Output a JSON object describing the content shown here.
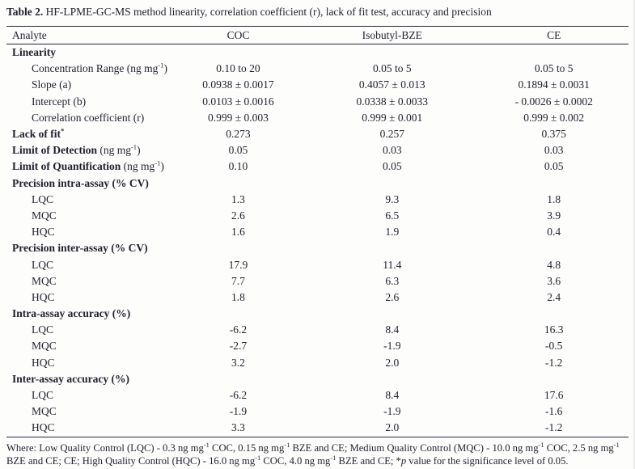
{
  "title": {
    "label": "Table 2.",
    "text": " HF-LPME-GC-MS method linearity, correlation coefficient (r), lack of fit test, accuracy and precision"
  },
  "table": {
    "columns": [
      "Analyte",
      "COC",
      "Isobutyl-BZE",
      "CE"
    ],
    "rows": [
      {
        "name": "linearity-section",
        "label": [
          {
            "text": "Linearity",
            "bold": true
          }
        ],
        "cells": [
          "",
          "",
          ""
        ]
      },
      {
        "name": "concentration-range",
        "indent": true,
        "label": [
          {
            "text": "Concentration Range (ng mg"
          },
          {
            "sup": "-1"
          },
          {
            "text": ")"
          }
        ],
        "cells": [
          "0.10 to 20",
          "0.05 to 5",
          "0.05 to 5"
        ]
      },
      {
        "name": "slope",
        "indent": true,
        "label": [
          {
            "text": "Slope (a)"
          }
        ],
        "cells": [
          "0.0938 ± 0.0017",
          "0.4057 ± 0.013",
          "0.1894 ± 0.0031"
        ]
      },
      {
        "name": "intercept",
        "indent": true,
        "label": [
          {
            "text": "Intercept (b)"
          }
        ],
        "cells": [
          "0.0103 ± 0.0016",
          "0.0338 ± 0.0033",
          "- 0.0026 ± 0.0002"
        ]
      },
      {
        "name": "correlation-coefficient",
        "indent": true,
        "label": [
          {
            "text": "Correlation coefficient (r)"
          }
        ],
        "cells": [
          "0.999 ± 0.003",
          "0.999 ± 0.001",
          "0.999 ± 0.002"
        ]
      },
      {
        "name": "lack-of-fit",
        "label": [
          {
            "text": "Lack of fit",
            "bold": true
          },
          {
            "sup": "*",
            "bold": true
          }
        ],
        "cells": [
          "0.273",
          "0.257",
          "0.375"
        ]
      },
      {
        "name": "limit-of-detection",
        "label": [
          {
            "text": "Limit of Detection",
            "bold": true
          },
          {
            "text": " (ng mg"
          },
          {
            "sup": "-1"
          },
          {
            "text": ")"
          }
        ],
        "cells": [
          "0.05",
          "0.03",
          "0.03"
        ]
      },
      {
        "name": "limit-of-quantification",
        "label": [
          {
            "text": "Limit of Quantification",
            "bold": true
          },
          {
            "text": " (ng mg"
          },
          {
            "sup": "-1"
          },
          {
            "text": ")"
          }
        ],
        "cells": [
          "0.10",
          "0.05",
          "0.05"
        ]
      },
      {
        "name": "precision-intra-assay-section",
        "label": [
          {
            "text": "Precision intra-assay (% CV)",
            "bold": true
          }
        ],
        "cells": [
          "",
          "",
          ""
        ]
      },
      {
        "name": "precision-intra-lqc",
        "indent": true,
        "label": [
          {
            "text": "LQC"
          }
        ],
        "cells": [
          "1.3",
          "9.3",
          "1.8"
        ]
      },
      {
        "name": "precision-intra-mqc",
        "indent": true,
        "label": [
          {
            "text": "MQC"
          }
        ],
        "cells": [
          "2.6",
          "6.5",
          "3.9"
        ]
      },
      {
        "name": "precision-intra-hqc",
        "indent": true,
        "label": [
          {
            "text": "HQC"
          }
        ],
        "cells": [
          "1.6",
          "1.9",
          "0.4"
        ]
      },
      {
        "name": "precision-inter-assay-section",
        "label": [
          {
            "text": "Precision inter-assay (% CV)",
            "bold": true
          }
        ],
        "cells": [
          "",
          "",
          ""
        ]
      },
      {
        "name": "precision-inter-lqc",
        "indent": true,
        "label": [
          {
            "text": "LQC"
          }
        ],
        "cells": [
          "17.9",
          "11.4",
          "4.8"
        ]
      },
      {
        "name": "precision-inter-mqc",
        "indent": true,
        "label": [
          {
            "text": "MQC"
          }
        ],
        "cells": [
          "7.7",
          "6.3",
          "3.6"
        ]
      },
      {
        "name": "precision-inter-hqc",
        "indent": true,
        "label": [
          {
            "text": "HQC"
          }
        ],
        "cells": [
          "1.8",
          "2.6",
          "2.4"
        ]
      },
      {
        "name": "intra-assay-accuracy-section",
        "label": [
          {
            "text": "Intra-assay accuracy (%)",
            "bold": true
          }
        ],
        "cells": [
          "",
          "",
          ""
        ]
      },
      {
        "name": "intra-accuracy-lqc",
        "indent": true,
        "label": [
          {
            "text": "LQC"
          }
        ],
        "cells": [
          "-6.2",
          "8.4",
          "16.3"
        ]
      },
      {
        "name": "intra-accuracy-mqc",
        "indent": true,
        "label": [
          {
            "text": "MQC"
          }
        ],
        "cells": [
          "-2.7",
          "-1.9",
          "-0.5"
        ]
      },
      {
        "name": "intra-accuracy-hqc",
        "indent": true,
        "label": [
          {
            "text": "HQC"
          }
        ],
        "cells": [
          "3.2",
          "2.0",
          "-1.2"
        ]
      },
      {
        "name": "inter-assay-accuracy-section",
        "label": [
          {
            "text": "Inter-assay accuracy (%)",
            "bold": true
          }
        ],
        "cells": [
          "",
          "",
          ""
        ]
      },
      {
        "name": "inter-accuracy-lqc",
        "indent": true,
        "label": [
          {
            "text": "LQC"
          }
        ],
        "cells": [
          "-6.2",
          "8.4",
          "17.6"
        ]
      },
      {
        "name": "inter-accuracy-mqc",
        "indent": true,
        "label": [
          {
            "text": "MQC"
          }
        ],
        "cells": [
          "-1.9",
          "-1.9",
          "-1.6"
        ]
      },
      {
        "name": "inter-accuracy-hqc",
        "indent": true,
        "label": [
          {
            "text": "HQC"
          }
        ],
        "cells": [
          "3.3",
          "2.0",
          "-1.2"
        ]
      }
    ]
  },
  "footnote": {
    "segments": [
      {
        "text": "Where: Low Quality Control (LQC) - 0.3 ng mg"
      },
      {
        "sup": "-1"
      },
      {
        "text": " COC, 0.15 ng mg"
      },
      {
        "sup": "-1"
      },
      {
        "text": " BZE and CE; Medium Quality Control (MQC) - 10.0 ng mg"
      },
      {
        "sup": "-1"
      },
      {
        "text": " COC, 2.5 ng mg"
      },
      {
        "sup": "-1"
      },
      {
        "text": " BZE and CE; CE; High Quality Control (HQC) - 16.0 ng mg"
      },
      {
        "sup": "-1"
      },
      {
        "text": " COC, 4.0 ng mg"
      },
      {
        "sup": "-1"
      },
      {
        "text": " BZE and CE; *"
      },
      {
        "italic": "p"
      },
      {
        "text": " value for the significance level of 0.05."
      }
    ]
  },
  "colors": {
    "text": "#1f1f30",
    "rule": "#25253a",
    "background": "#fdfdfb"
  }
}
